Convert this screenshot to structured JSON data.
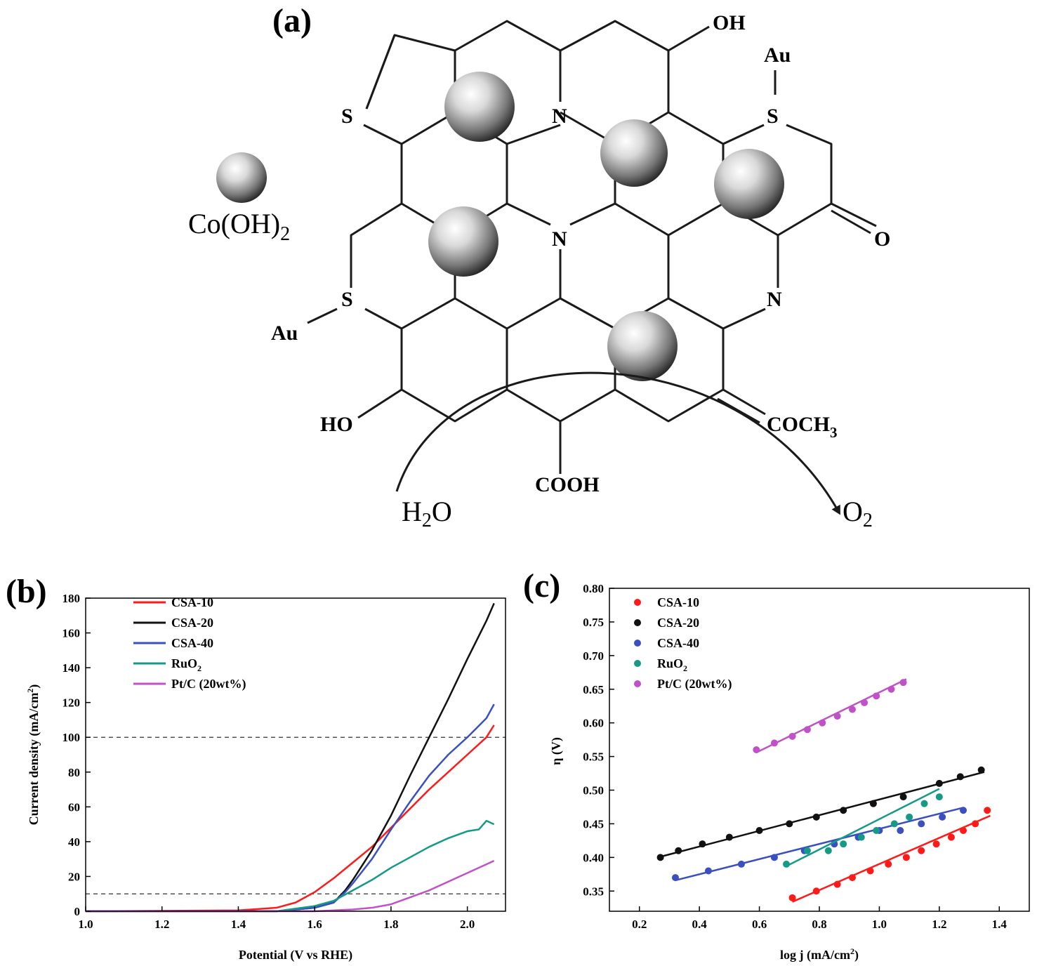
{
  "panel_a": {
    "label": "(a)",
    "legend_species": "Co(OH)",
    "legend_subscript": "2",
    "atoms": {
      "oh_top": "OH",
      "au_top": "Au",
      "s_left": "S",
      "n_top": "N",
      "s_right": "S",
      "n_mid": "N",
      "o_ketone": "O",
      "s_lower": "S",
      "au_left": "Au",
      "n_right": "N",
      "ho": "HO",
      "coch": "COCH",
      "coch_sub": "3",
      "cooh": "COOH"
    },
    "reactant": "H",
    "reactant_sub": "2",
    "reactant_tail": "O",
    "product": "O",
    "product_sub": "2",
    "colors": {
      "bond": "#1a1a1a",
      "sphere_light": "#ffffff",
      "sphere_dark": "#2a2a2a"
    }
  },
  "chart_data": [
    {
      "panel": "(b)",
      "type": "line",
      "xlabel": "Potential (V vs RHE)",
      "ylabel": "Current density (mA/cm",
      "ylabel_sup": "2",
      "ylabel_tail": ")",
      "xlim": [
        1.0,
        2.1
      ],
      "ylim": [
        0,
        180
      ],
      "xticks": [
        1.0,
        1.2,
        1.4,
        1.6,
        1.8,
        2.0
      ],
      "yticks": [
        0,
        20,
        40,
        60,
        80,
        100,
        120,
        140,
        160,
        180
      ],
      "reference_lines": [
        10,
        100
      ],
      "legend_position": "top-left",
      "series": [
        {
          "name": "CSA-10",
          "color": "#ff1a1a",
          "x": [
            1.0,
            1.4,
            1.5,
            1.55,
            1.6,
            1.65,
            1.7,
            1.75,
            1.8,
            1.85,
            1.9,
            1.95,
            2.0,
            2.05,
            2.07
          ],
          "y": [
            0,
            0.5,
            2,
            5,
            11,
            19,
            28,
            37,
            48,
            59,
            70,
            80,
            90,
            100,
            107
          ]
        },
        {
          "name": "CSA-20",
          "color": "#111111",
          "x": [
            1.0,
            1.5,
            1.6,
            1.65,
            1.68,
            1.7,
            1.75,
            1.8,
            1.85,
            1.9,
            1.95,
            2.0,
            2.05,
            2.07
          ],
          "y": [
            0,
            0,
            2,
            5,
            12,
            18,
            35,
            55,
            78,
            100,
            122,
            145,
            167,
            177
          ]
        },
        {
          "name": "CSA-40",
          "color": "#3a4fc0",
          "x": [
            1.0,
            1.5,
            1.6,
            1.65,
            1.68,
            1.7,
            1.75,
            1.8,
            1.85,
            1.9,
            1.95,
            2.0,
            2.05,
            2.07
          ],
          "y": [
            0,
            0,
            2,
            5,
            11,
            16,
            30,
            47,
            63,
            78,
            90,
            100,
            111,
            119
          ]
        },
        {
          "name": "RuO",
          "name_sub": "2",
          "color": "#159a87",
          "x": [
            1.0,
            1.5,
            1.6,
            1.65,
            1.7,
            1.75,
            1.8,
            1.85,
            1.9,
            1.95,
            2.0,
            2.03,
            2.05,
            2.07
          ],
          "y": [
            0,
            0,
            3,
            6,
            12,
            18,
            25,
            31,
            37,
            42,
            46,
            47,
            52,
            50
          ]
        },
        {
          "name": "Pt/C (20wt%)",
          "color": "#c051c8",
          "x": [
            1.0,
            1.6,
            1.7,
            1.75,
            1.8,
            1.85,
            1.9,
            1.95,
            2.0,
            2.05,
            2.07
          ],
          "y": [
            0,
            0,
            1,
            2,
            4,
            8,
            12,
            17,
            22,
            27,
            29
          ]
        }
      ]
    },
    {
      "panel": "(c)",
      "type": "scatter",
      "xlabel": "log j (mA/cm",
      "xlabel_sup": "2",
      "xlabel_tail": ")",
      "ylabel": "η (V)",
      "xlim": [
        0.1,
        1.5
      ],
      "ylim": [
        0.32,
        0.8
      ],
      "xticks": [
        0.2,
        0.4,
        0.6,
        0.8,
        1.0,
        1.2,
        1.4
      ],
      "yticks": [
        0.35,
        0.4,
        0.45,
        0.5,
        0.55,
        0.6,
        0.65,
        0.7,
        0.75,
        0.8
      ],
      "legend_position": "top-left",
      "series": [
        {
          "name": "CSA-10",
          "color": "#ff1a1a",
          "x": [
            0.71,
            0.79,
            0.86,
            0.91,
            0.97,
            1.03,
            1.09,
            1.14,
            1.19,
            1.24,
            1.28,
            1.32,
            1.36
          ],
          "y": [
            0.34,
            0.35,
            0.36,
            0.37,
            0.38,
            0.39,
            0.4,
            0.41,
            0.42,
            0.43,
            0.44,
            0.45,
            0.47
          ],
          "fit": [
            [
              0.71,
              0.334
            ],
            [
              1.37,
              0.462
            ]
          ]
        },
        {
          "name": "CSA-20",
          "color": "#111111",
          "x": [
            0.27,
            0.33,
            0.41,
            0.5,
            0.6,
            0.7,
            0.79,
            0.88,
            0.98,
            1.08,
            1.2,
            1.27,
            1.34
          ],
          "y": [
            0.4,
            0.41,
            0.42,
            0.43,
            0.44,
            0.45,
            0.46,
            0.47,
            0.48,
            0.49,
            0.51,
            0.52,
            0.53
          ],
          "fit": [
            [
              0.27,
              0.401
            ],
            [
              1.35,
              0.527
            ]
          ]
        },
        {
          "name": "CSA-40",
          "color": "#3a4fc0",
          "x": [
            0.32,
            0.43,
            0.54,
            0.65,
            0.75,
            0.85,
            0.93,
            1.0,
            1.07,
            1.14,
            1.21,
            1.28
          ],
          "y": [
            0.37,
            0.38,
            0.39,
            0.4,
            0.41,
            0.42,
            0.43,
            0.44,
            0.44,
            0.45,
            0.46,
            0.47
          ],
          "fit": [
            [
              0.32,
              0.366
            ],
            [
              1.28,
              0.474
            ]
          ]
        },
        {
          "name": "RuO",
          "name_sub": "2",
          "color": "#159a87",
          "x": [
            0.69,
            0.76,
            0.83,
            0.88,
            0.94,
            0.99,
            1.05,
            1.1,
            1.15,
            1.2
          ],
          "y": [
            0.39,
            0.41,
            0.41,
            0.42,
            0.43,
            0.44,
            0.45,
            0.46,
            0.48,
            0.49
          ],
          "fit": [
            [
              0.69,
              0.387
            ],
            [
              1.2,
              0.502
            ]
          ]
        },
        {
          "name": "Pt/C (20wt%)",
          "color": "#c051c8",
          "x": [
            0.59,
            0.65,
            0.71,
            0.76,
            0.81,
            0.86,
            0.91,
            0.95,
            0.99,
            1.04,
            1.08
          ],
          "y": [
            0.56,
            0.57,
            0.58,
            0.59,
            0.6,
            0.61,
            0.62,
            0.63,
            0.64,
            0.65,
            0.66
          ],
          "fit": [
            [
              0.59,
              0.556
            ],
            [
              1.09,
              0.665
            ]
          ]
        }
      ]
    }
  ]
}
